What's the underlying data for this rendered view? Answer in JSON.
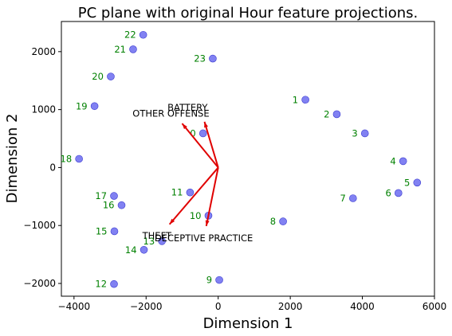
{
  "chart_data": {
    "type": "scatter",
    "title": "PC plane with original Hour feature projections.",
    "xlabel": "Dimension 1",
    "ylabel": "Dimension 2",
    "xlim": [
      -4350,
      6000
    ],
    "ylim": [
      -2220,
      2520
    ],
    "xticks": [
      -4000,
      -2000,
      0,
      2000,
      4000,
      6000
    ],
    "yticks": [
      -2000,
      -1000,
      0,
      1000,
      2000
    ],
    "xtick_labels": [
      "−4000",
      "−2000",
      "0",
      "2000",
      "4000",
      "6000"
    ],
    "ytick_labels": [
      "−2000",
      "−1000",
      "0",
      "1000",
      "2000"
    ],
    "grid": false,
    "point_color": "#6b6bf0",
    "label_color": "#008000",
    "arrow_color": "#e00000",
    "points": [
      {
        "label": "0",
        "x": -420,
        "y": 590
      },
      {
        "label": "1",
        "x": 2420,
        "y": 1170
      },
      {
        "label": "2",
        "x": 3290,
        "y": 920
      },
      {
        "label": "3",
        "x": 4070,
        "y": 590
      },
      {
        "label": "4",
        "x": 5130,
        "y": 110
      },
      {
        "label": "5",
        "x": 5520,
        "y": -260
      },
      {
        "label": "6",
        "x": 5000,
        "y": -440
      },
      {
        "label": "7",
        "x": 3740,
        "y": -530
      },
      {
        "label": "8",
        "x": 1800,
        "y": -930
      },
      {
        "label": "9",
        "x": 30,
        "y": -1940
      },
      {
        "label": "10",
        "x": -270,
        "y": -830
      },
      {
        "label": "11",
        "x": -780,
        "y": -430
      },
      {
        "label": "12",
        "x": -2890,
        "y": -2010
      },
      {
        "label": "13",
        "x": -1560,
        "y": -1270
      },
      {
        "label": "14",
        "x": -2060,
        "y": -1420
      },
      {
        "label": "15",
        "x": -2880,
        "y": -1100
      },
      {
        "label": "16",
        "x": -2680,
        "y": -650
      },
      {
        "label": "17",
        "x": -2890,
        "y": -490
      },
      {
        "label": "18",
        "x": -3860,
        "y": 150
      },
      {
        "label": "19",
        "x": -3430,
        "y": 1060
      },
      {
        "label": "20",
        "x": -2980,
        "y": 1570
      },
      {
        "label": "21",
        "x": -2360,
        "y": 2040
      },
      {
        "label": "22",
        "x": -2080,
        "y": 2290
      },
      {
        "label": "23",
        "x": -150,
        "y": 1880
      }
    ],
    "arrows": [
      {
        "label": "BATTERY",
        "x": -1000,
        "y": 760
      },
      {
        "label": "OTHER OFFENSE",
        "x": -380,
        "y": 790
      },
      {
        "label": "THEFT",
        "x": -1350,
        "y": -980
      },
      {
        "label": "DECEPTIVE PRACTICE",
        "x": -330,
        "y": -1010
      }
    ],
    "arrow_labels": [
      {
        "text": "BATTERY",
        "x": -850,
        "y": 980
      },
      {
        "text": "OTHER OFFENSE",
        "x": -1310,
        "y": 880
      },
      {
        "text": "THEFT",
        "x": -1700,
        "y": -1230
      },
      {
        "text": "DECEPTIVE PRACTICE",
        "x": -400,
        "y": -1270
      }
    ]
  }
}
